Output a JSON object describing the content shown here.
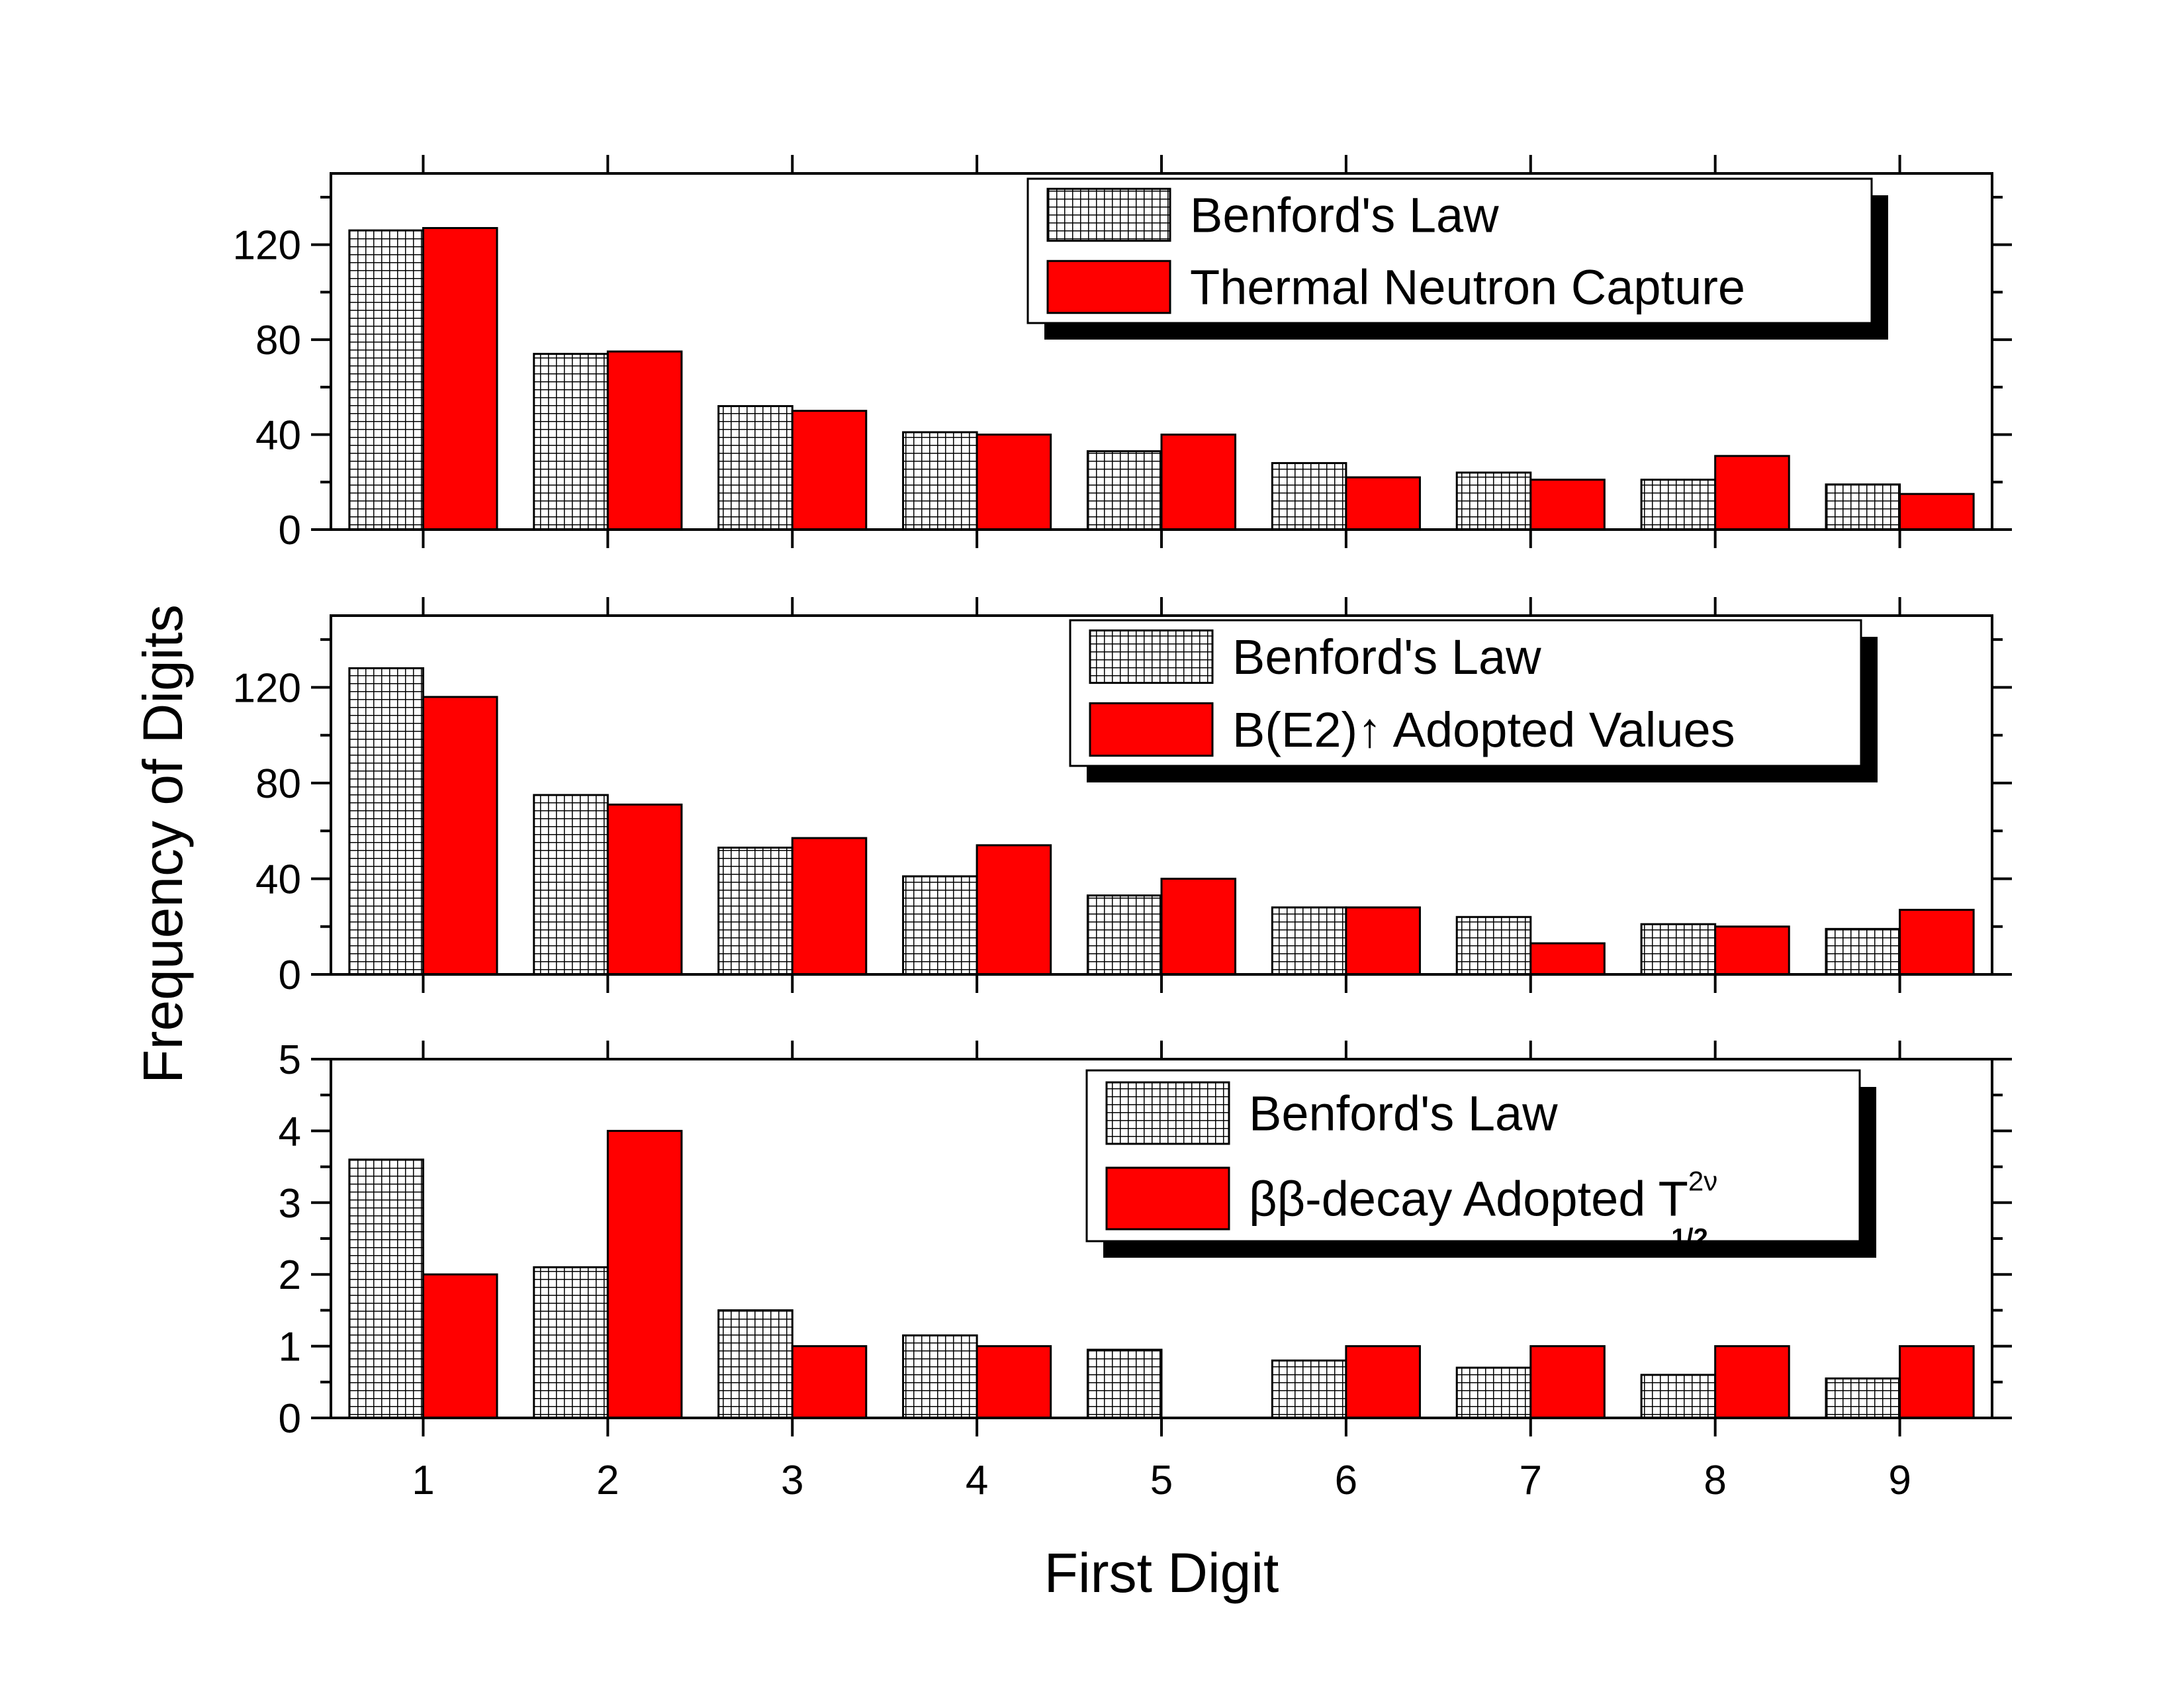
{
  "figure": {
    "xlabel": "First Digit",
    "ylabel": "Frequency of Digits",
    "colors": {
      "benford_fill": "#ffffff",
      "data_fill": "#ff0000",
      "outline": "#000000"
    }
  },
  "chart_data": [
    {
      "type": "bar",
      "categories": [
        "1",
        "2",
        "3",
        "4",
        "5",
        "6",
        "7",
        "8",
        "9"
      ],
      "ylim": [
        0,
        150
      ],
      "yticks": [
        "0",
        "40",
        "80",
        "120"
      ],
      "series": [
        {
          "name": "Benford's Law",
          "pattern": "grid",
          "values": [
            126,
            74,
            52,
            41,
            33,
            28,
            24,
            21,
            19
          ]
        },
        {
          "name": "Thermal Neutron Capture",
          "pattern": "solid",
          "values": [
            127,
            75,
            50,
            40,
            40,
            22,
            21,
            31,
            15
          ]
        }
      ],
      "legend": {
        "position": "top-right"
      }
    },
    {
      "type": "bar",
      "categories": [
        "1",
        "2",
        "3",
        "4",
        "5",
        "6",
        "7",
        "8",
        "9"
      ],
      "ylim": [
        0,
        150
      ],
      "yticks": [
        "0",
        "40",
        "80",
        "120"
      ],
      "series": [
        {
          "name": "Benford's Law",
          "pattern": "grid",
          "values": [
            128,
            75,
            53,
            41,
            33,
            28,
            24,
            21,
            19
          ]
        },
        {
          "name": "B(E2)↑ Adopted Values",
          "pattern": "solid",
          "values": [
            116,
            71,
            57,
            54,
            40,
            28,
            13,
            20,
            27
          ]
        }
      ],
      "legend": {
        "position": "top-right"
      }
    },
    {
      "type": "bar",
      "categories": [
        "1",
        "2",
        "3",
        "4",
        "5",
        "6",
        "7",
        "8",
        "9"
      ],
      "ylim": [
        0,
        5
      ],
      "yticks": [
        "0",
        "1",
        "2",
        "3",
        "4",
        "5"
      ],
      "series": [
        {
          "name": "Benford's Law",
          "pattern": "grid",
          "values": [
            3.6,
            2.1,
            1.5,
            1.15,
            0.95,
            0.8,
            0.7,
            0.6,
            0.55
          ]
        },
        {
          "name": "ββ-decay Adopted T",
          "name_sup": "2ν",
          "name_sub": "1/2",
          "pattern": "solid",
          "values": [
            2,
            4,
            1,
            1,
            0,
            1,
            1,
            1,
            1
          ]
        }
      ],
      "legend": {
        "position": "top-right"
      }
    }
  ]
}
